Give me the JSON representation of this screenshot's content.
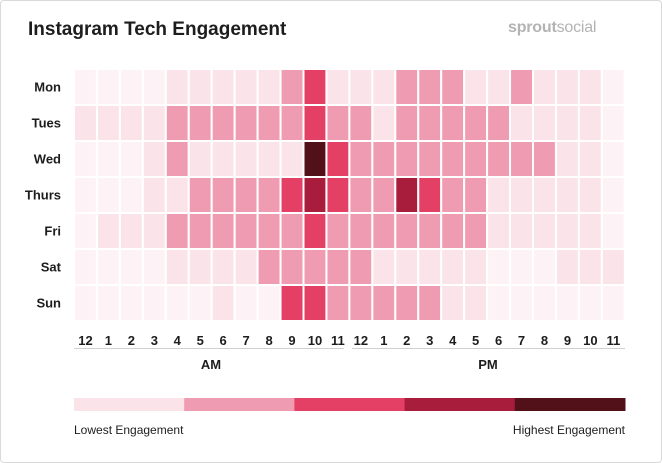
{
  "title": "Instagram Tech Engagement",
  "brand": {
    "part1": "sprout",
    "part2": "social"
  },
  "chart_data": {
    "type": "heatmap",
    "rows": [
      "Mon",
      "Tues",
      "Wed",
      "Thurs",
      "Fri",
      "Sat",
      "Sun"
    ],
    "columns": [
      "12",
      "1",
      "2",
      "3",
      "4",
      "5",
      "6",
      "7",
      "8",
      "9",
      "10",
      "11",
      "12",
      "1",
      "2",
      "3",
      "4",
      "5",
      "6",
      "7",
      "8",
      "9",
      "10",
      "11"
    ],
    "period_labels": [
      "AM",
      "PM"
    ],
    "level_scale": "0 = lowest engagement ... 5 = highest engagement",
    "values": [
      [
        0,
        0,
        0,
        0,
        1,
        1,
        1,
        1,
        1,
        2,
        3,
        1,
        1,
        1,
        2,
        2,
        2,
        1,
        1,
        2,
        1,
        1,
        1,
        0
      ],
      [
        1,
        1,
        1,
        1,
        2,
        2,
        2,
        2,
        2,
        2,
        3,
        2,
        2,
        1,
        2,
        2,
        2,
        2,
        2,
        1,
        1,
        1,
        1,
        0
      ],
      [
        0,
        0,
        0,
        1,
        2,
        1,
        1,
        1,
        1,
        1,
        5,
        3,
        2,
        2,
        2,
        2,
        2,
        2,
        2,
        2,
        2,
        1,
        1,
        0
      ],
      [
        0,
        0,
        0,
        1,
        1,
        2,
        2,
        2,
        2,
        3,
        4,
        3,
        2,
        2,
        4,
        3,
        2,
        2,
        1,
        1,
        1,
        1,
        1,
        0
      ],
      [
        0,
        1,
        1,
        1,
        2,
        2,
        2,
        2,
        2,
        2,
        3,
        2,
        2,
        2,
        2,
        2,
        2,
        2,
        1,
        1,
        1,
        1,
        1,
        0
      ],
      [
        0,
        0,
        0,
        0,
        1,
        1,
        1,
        1,
        2,
        2,
        2,
        2,
        2,
        1,
        1,
        1,
        1,
        1,
        0,
        0,
        0,
        1,
        1,
        1
      ],
      [
        0,
        0,
        0,
        0,
        0,
        0,
        1,
        0,
        0,
        3,
        3,
        2,
        2,
        2,
        2,
        2,
        1,
        1,
        0,
        0,
        0,
        0,
        0,
        0
      ]
    ],
    "colors": [
      "#fdf3f6",
      "#fae3e9",
      "#ef9bb2",
      "#e43f64",
      "#a81c3c",
      "#521119"
    ],
    "legend": {
      "colors": [
        "#fae3e9",
        "#ef9bb2",
        "#e43f64",
        "#a81c3c",
        "#521119"
      ],
      "low_label": "Lowest Engagement",
      "high_label": "Highest Engagement"
    }
  }
}
